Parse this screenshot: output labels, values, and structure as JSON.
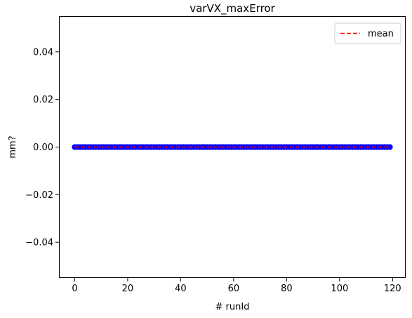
{
  "chart_data": {
    "type": "scatter",
    "title": "varVX_maxError",
    "xlabel": "# runId",
    "ylabel": "mm?",
    "xlim": [
      -5.95,
      124.95
    ],
    "ylim": [
      -0.055,
      0.055
    ],
    "xticks": [
      0,
      20,
      40,
      60,
      80,
      100,
      120
    ],
    "yticks": [
      -0.04,
      -0.02,
      0.0,
      0.02,
      0.04
    ],
    "ytick_labels": [
      "−0.04",
      "−0.02",
      "0.00",
      "0.02",
      "0.04"
    ],
    "grid": false,
    "legend": {
      "placement": "top-right",
      "entries": [
        "mean"
      ]
    },
    "series": [
      {
        "kind": "scatter",
        "marker": "circle",
        "color": "#0000ff",
        "x_start": 0,
        "x_end": 119,
        "x_step": 1,
        "y": 0.0
      },
      {
        "name": "mean",
        "kind": "line",
        "style": "dashed",
        "color": "#ff0000",
        "x": [
          0,
          119
        ],
        "y": [
          0.0,
          0.0
        ]
      }
    ]
  }
}
